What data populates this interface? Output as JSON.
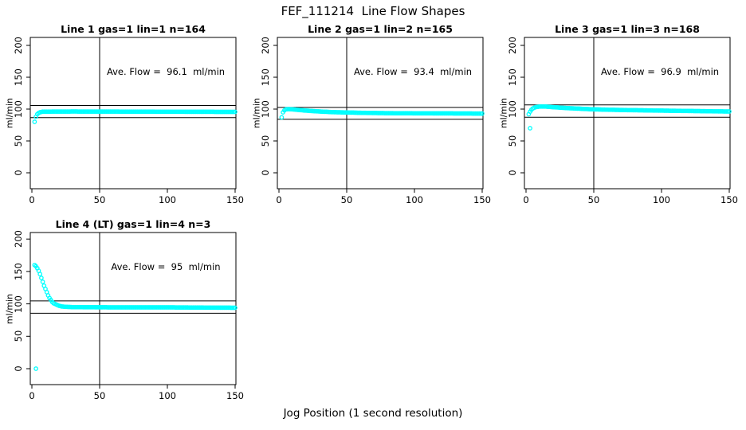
{
  "title": "FEF_111214  Line Flow Shapes",
  "xlabel": "Jog Position (1 second resolution)",
  "colors": {
    "points": "#00FFFF",
    "axis": "#000000",
    "background": "#FFFFFF"
  },
  "chart_data": [
    {
      "type": "scatter",
      "title": "Line 1 gas=1 lin=1 n=164",
      "annotation": "Ave. Flow =  96.1  ml/min",
      "ave_flow_ml_min": 96.1,
      "n": 164,
      "ylabel": "ml/min",
      "xlim": [
        0,
        150
      ],
      "ylim": [
        0,
        200
      ],
      "xticks": [
        0,
        50,
        100,
        150
      ],
      "yticks": [
        0,
        50,
        100,
        150,
        200
      ],
      "vline_x": 50,
      "hlines": [
        105.7,
        86.5
      ],
      "x_step": 1,
      "profile": [
        [
          2,
          80
        ],
        [
          3,
          88
        ],
        [
          4,
          92
        ],
        [
          5,
          94
        ],
        [
          6,
          95
        ],
        [
          8,
          96
        ],
        [
          30,
          96.2
        ],
        [
          80,
          96
        ],
        [
          150,
          95.6
        ]
      ],
      "outliers": []
    },
    {
      "type": "scatter",
      "title": "Line 2 gas=1 lin=2 n=165",
      "annotation": "Ave. Flow =  93.4  ml/min",
      "ave_flow_ml_min": 93.4,
      "n": 165,
      "ylabel": "ml/min",
      "xlim": [
        0,
        150
      ],
      "ylim": [
        0,
        200
      ],
      "xticks": [
        0,
        50,
        100,
        150
      ],
      "yticks": [
        0,
        50,
        100,
        150,
        200
      ],
      "vline_x": 50,
      "hlines": [
        102.7,
        84.1
      ],
      "x_step": 1,
      "profile": [
        [
          2,
          87
        ],
        [
          3,
          95
        ],
        [
          4,
          98
        ],
        [
          5,
          99.5
        ],
        [
          7,
          100
        ],
        [
          10,
          99.6
        ],
        [
          15,
          98.6
        ],
        [
          20,
          97.6
        ],
        [
          30,
          96.2
        ],
        [
          40,
          95.2
        ],
        [
          60,
          94.2
        ],
        [
          80,
          93.6
        ],
        [
          150,
          93
        ]
      ],
      "outliers": []
    },
    {
      "type": "scatter",
      "title": "Line 3 gas=1 lin=3 n=168",
      "annotation": "Ave. Flow =  96.9  ml/min",
      "ave_flow_ml_min": 96.9,
      "n": 168,
      "ylabel": "ml/min",
      "xlim": [
        0,
        150
      ],
      "ylim": [
        0,
        200
      ],
      "xticks": [
        0,
        50,
        100,
        150
      ],
      "yticks": [
        0,
        50,
        100,
        150,
        200
      ],
      "vline_x": 50,
      "hlines": [
        106.6,
        87.2
      ],
      "x_step": 1,
      "profile": [
        [
          2,
          92
        ],
        [
          3,
          96
        ],
        [
          4,
          99
        ],
        [
          5,
          101
        ],
        [
          7,
          103
        ],
        [
          10,
          104
        ],
        [
          14,
          104
        ],
        [
          20,
          103
        ],
        [
          30,
          101.6
        ],
        [
          40,
          100.6
        ],
        [
          50,
          99.6
        ],
        [
          70,
          98.6
        ],
        [
          100,
          97.6
        ],
        [
          150,
          96.2
        ]
      ],
      "outliers": [
        [
          3,
          70
        ]
      ]
    },
    {
      "type": "scatter",
      "title": "Line 4 (LT) gas=1 lin=4 n=3",
      "annotation": "Ave. Flow =  95  ml/min",
      "ave_flow_ml_min": 95,
      "n": 3,
      "ylabel": "ml/min",
      "xlim": [
        0,
        150
      ],
      "ylim": [
        0,
        200
      ],
      "xticks": [
        0,
        50,
        100,
        150
      ],
      "yticks": [
        0,
        50,
        100,
        150,
        200
      ],
      "vline_x": 50,
      "hlines": [
        104.5,
        85.5
      ],
      "x_step": 1,
      "profile": [
        [
          2,
          160
        ],
        [
          3,
          158
        ],
        [
          4,
          155
        ],
        [
          5,
          151
        ],
        [
          6,
          146
        ],
        [
          7,
          140
        ],
        [
          8,
          134
        ],
        [
          9,
          128
        ],
        [
          10,
          123
        ],
        [
          11,
          118
        ],
        [
          12,
          113
        ],
        [
          13,
          109
        ],
        [
          14,
          106
        ],
        [
          15,
          103
        ],
        [
          16,
          101
        ],
        [
          17,
          100
        ],
        [
          18,
          99
        ],
        [
          19,
          98
        ],
        [
          20,
          97
        ],
        [
          22,
          96
        ],
        [
          25,
          95.4
        ],
        [
          30,
          95
        ],
        [
          60,
          94.6
        ],
        [
          100,
          94.6
        ],
        [
          150,
          94
        ]
      ],
      "outliers": [
        [
          3,
          0
        ]
      ]
    }
  ]
}
